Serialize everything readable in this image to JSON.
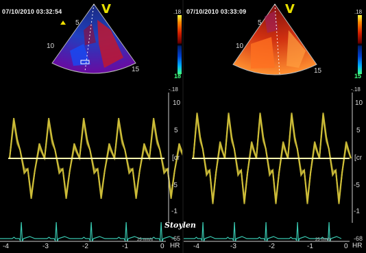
{
  "left": {
    "timestamp": "07/10/2010 03:32:54",
    "marker": "V",
    "color_scale_top": ".18",
    "color_scale_bottom": "18",
    "depth_labels": [
      "5",
      "10",
      "15"
    ],
    "velocity_top": "-.18",
    "velocity_ticks": [
      "10",
      "5",
      "[cr",
      "-5",
      "-1"
    ],
    "time_ticks": [
      "-4",
      "-3",
      "-2",
      "-1",
      "0"
    ],
    "sweep_speed": "25 mm/s",
    "hr_label": "HR",
    "hr_value": "-65"
  },
  "right": {
    "timestamp": "07/10/2010 03:33:09",
    "marker": "V",
    "color_scale_top": ".18",
    "color_scale_bottom": "15",
    "depth_labels": [
      "5",
      "10",
      "15"
    ],
    "velocity_top": "-.18",
    "velocity_ticks": [
      "10",
      "5",
      "[cr",
      "-5",
      "-1"
    ],
    "time_ticks": [
      "-4",
      "-3",
      "-2",
      "-1",
      "0"
    ],
    "sweep_speed": "25 mm/s",
    "hr_label": "HR",
    "hr_value": "-68"
  },
  "watermark": "Stoylen",
  "colors": {
    "trace": "#e8d640",
    "ecg": "#38c8b0",
    "baseline": "#fff9b0",
    "marker": "#e8e000"
  }
}
